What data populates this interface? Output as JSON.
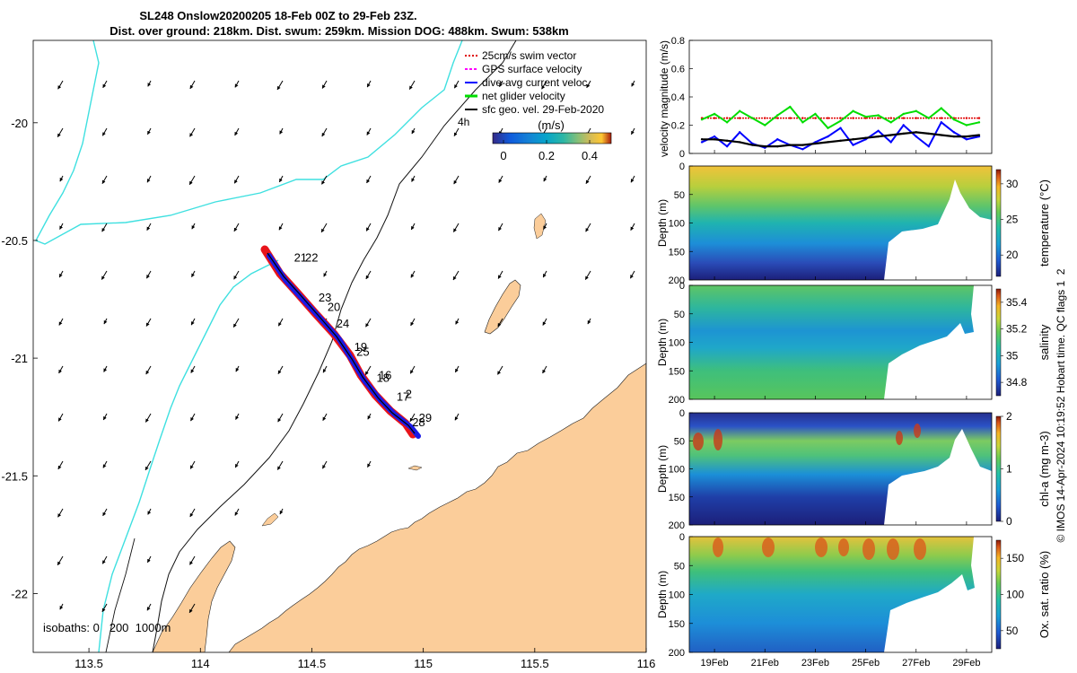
{
  "title": {
    "line1": "SL248 Onslow20200205 18-Feb 00Z to 29-Feb 23Z.",
    "line2": "Dist. over ground: 218km. Dist. swum: 259km. Mission DOG: 488km. Swum: 538km"
  },
  "map": {
    "xticks": [
      "113.5",
      "114",
      "114.5",
      "115",
      "115.5",
      "116"
    ],
    "xtick_values": [
      113.5,
      114,
      114.5,
      115,
      115.5,
      116
    ],
    "yticks": [
      "-20",
      "-20.5",
      "-21",
      "-21.5",
      "-22"
    ],
    "ytick_values": [
      -20,
      -20.5,
      -21,
      -21.5,
      -22
    ],
    "xlim": [
      113.25,
      116.0
    ],
    "ylim": [
      -22.25,
      -19.65
    ],
    "legend": [
      {
        "label": "25cm/s swim vector",
        "color": "#e00000"
      },
      {
        "label": "GPS surface velocity",
        "color": "#ff00ff"
      },
      {
        "label": "dive-avg current veloc.",
        "color": "#0000ff"
      },
      {
        "label": "net glider velocity",
        "color": "#00dd00"
      },
      {
        "label": "sfc geo. vel. 29-Feb-2020",
        "color": "#000000"
      }
    ],
    "legend_extra": "4h",
    "colorbar": {
      "label": "(m/s)",
      "ticks": [
        "0",
        "0.2",
        "0.4"
      ],
      "tick_values": [
        0,
        0.2,
        0.4
      ],
      "range": [
        -0.05,
        0.5
      ]
    },
    "isobaths_label": "isobaths: 0   200  1000m",
    "track_day_labels": [
      {
        "text": "21",
        "lon": 114.42,
        "lat": -20.59
      },
      {
        "text": "22",
        "lon": 114.47,
        "lat": -20.59
      },
      {
        "text": "23",
        "lon": 114.53,
        "lat": -20.76
      },
      {
        "text": "20",
        "lon": 114.57,
        "lat": -20.8
      },
      {
        "text": "24",
        "lon": 114.61,
        "lat": -20.87
      },
      {
        "text": "19",
        "lon": 114.69,
        "lat": -20.97
      },
      {
        "text": "25",
        "lon": 114.7,
        "lat": -20.99
      },
      {
        "text": "16",
        "lon": 114.8,
        "lat": -21.09
      },
      {
        "text": "18",
        "lon": 114.79,
        "lat": -21.1
      },
      {
        "text": "17",
        "lon": 114.88,
        "lat": -21.18
      },
      {
        "text": "2",
        "lon": 114.92,
        "lat": -21.17
      },
      {
        "text": "29",
        "lon": 114.98,
        "lat": -21.27
      },
      {
        "text": "28",
        "lon": 114.95,
        "lat": -21.29
      }
    ]
  },
  "velocity_panel": {
    "ylabel": "velocity magnitude (m/s)",
    "yticks": [
      "0",
      "0.2",
      "0.4",
      "0.6",
      "0.8"
    ],
    "ytick_values": [
      0,
      0.2,
      0.4,
      0.6,
      0.8
    ],
    "ylim": [
      0,
      0.8
    ]
  },
  "sections": [
    {
      "name": "temperature",
      "cbar_label": "temperature (°C)",
      "cbar_ticks": [
        "20",
        "25",
        "30"
      ],
      "cbar_tick_values": [
        20,
        25,
        30
      ],
      "cbar_range": [
        17,
        32
      ],
      "ylabel": "Depth (m)"
    },
    {
      "name": "salinity",
      "cbar_label": "salinity",
      "cbar_ticks": [
        "34.8",
        "35",
        "35.2",
        "35.4"
      ],
      "cbar_tick_values": [
        34.8,
        35,
        35.2,
        35.4
      ],
      "cbar_range": [
        34.7,
        35.5
      ],
      "ylabel": "Depth (m)"
    },
    {
      "name": "chla",
      "cbar_label": "chl-a (mg m-3)",
      "cbar_ticks": [
        "0",
        "1",
        "2"
      ],
      "cbar_tick_values": [
        0,
        1,
        2
      ],
      "cbar_range": [
        0,
        2
      ],
      "ylabel": "Depth (m)"
    },
    {
      "name": "oxygen",
      "cbar_label": "Ox. sat. ratio (%)",
      "cbar_ticks": [
        "50",
        "100",
        "150"
      ],
      "cbar_tick_values": [
        50,
        100,
        150
      ],
      "cbar_range": [
        25,
        175
      ],
      "ylabel": "Depth (m)"
    }
  ],
  "depth_ticks": [
    "0",
    "50",
    "100",
    "150",
    "200"
  ],
  "depth_tick_values": [
    0,
    50,
    100,
    150,
    200
  ],
  "date_ticks": [
    "19Feb",
    "21Feb",
    "23Feb",
    "25Feb",
    "27Feb",
    "29Feb"
  ],
  "date_tick_days": [
    19,
    21,
    23,
    25,
    27,
    29
  ],
  "side_note": "© IMOS 14-Apr-2024 10:19:52 Hobart time. QC flags 1  2",
  "chart_data": {
    "type": "line",
    "title": "SL248 Onslow20200205 18-Feb 00Z to 29-Feb 23Z.",
    "x_days": [
      18.5,
      19,
      19.5,
      20,
      20.5,
      21,
      21.5,
      22,
      22.5,
      23,
      23.5,
      24,
      24.5,
      25,
      25.5,
      26,
      26.5,
      27,
      27.5,
      28,
      28.5,
      29,
      29.5
    ],
    "xlim_days": [
      18.0,
      30.0
    ],
    "series": [
      {
        "color": "#e00000",
        "values": [
          0.25,
          0.25,
          0.25,
          0.25,
          0.25,
          0.25,
          0.25,
          0.25,
          0.25,
          0.25,
          0.25,
          0.25,
          0.25,
          0.25,
          0.25,
          0.25,
          0.25,
          0.25,
          0.25,
          0.25,
          0.25,
          0.25,
          0.25
        ]
      },
      {
        "color": "#00dd00",
        "values": [
          0.24,
          0.28,
          0.22,
          0.3,
          0.25,
          0.2,
          0.27,
          0.33,
          0.22,
          0.28,
          0.18,
          0.23,
          0.3,
          0.26,
          0.27,
          0.22,
          0.28,
          0.3,
          0.25,
          0.32,
          0.24,
          0.2,
          0.22
        ]
      },
      {
        "color": "#0000ff",
        "values": [
          0.08,
          0.12,
          0.05,
          0.15,
          0.07,
          0.04,
          0.1,
          0.06,
          0.03,
          0.08,
          0.12,
          0.18,
          0.06,
          0.1,
          0.16,
          0.08,
          0.2,
          0.12,
          0.05,
          0.22,
          0.15,
          0.1,
          0.12
        ]
      },
      {
        "color": "#000000",
        "values": [
          0.1,
          0.1,
          0.09,
          0.08,
          0.06,
          0.05,
          0.05,
          0.06,
          0.06,
          0.07,
          0.08,
          0.09,
          0.1,
          0.11,
          0.12,
          0.13,
          0.14,
          0.15,
          0.14,
          0.13,
          0.12,
          0.12,
          0.13
        ]
      }
    ]
  }
}
